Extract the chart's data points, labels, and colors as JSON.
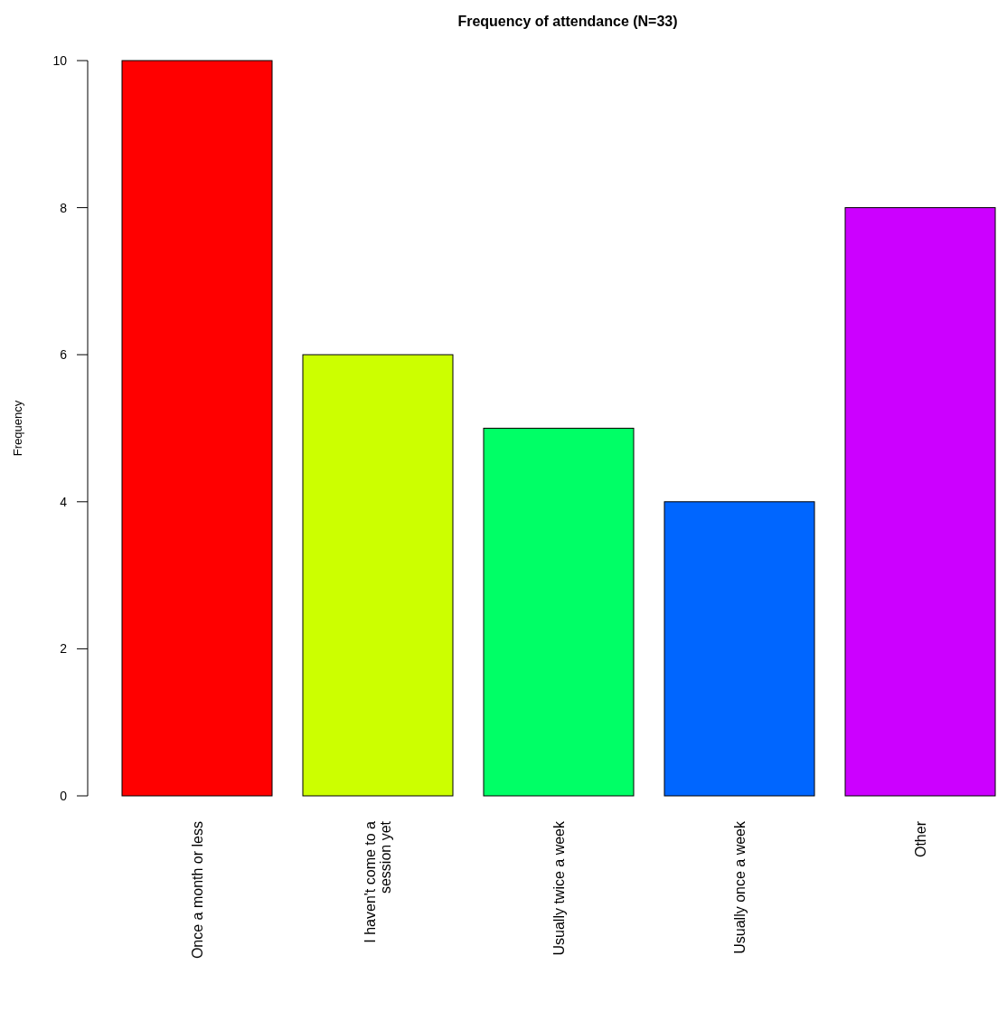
{
  "chart_data": {
    "type": "bar",
    "title": "Frequency of attendance (N=33)",
    "ylabel": "Frequency",
    "categories": [
      "Once a month or less",
      "I haven't come to a session yet",
      "Usually twice a week",
      "Usually once a week",
      "Other"
    ],
    "values": [
      10,
      6,
      5,
      4,
      8
    ],
    "colors": [
      "#ff0000",
      "#ccff00",
      "#00ff66",
      "#0066ff",
      "#cc00ff"
    ],
    "ylim": [
      0,
      10
    ],
    "yticks": [
      0,
      2,
      4,
      6,
      8,
      10
    ],
    "grid": false
  }
}
